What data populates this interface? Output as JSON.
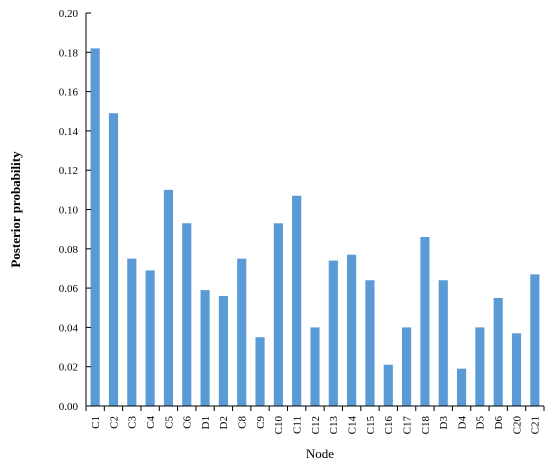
{
  "chart_data": {
    "type": "bar",
    "title": "",
    "xlabel": "Node",
    "ylabel": "Posterior probability",
    "ylim": [
      0,
      0.2
    ],
    "yticks": [
      "0.00",
      "0.02",
      "0.04",
      "0.06",
      "0.08",
      "0.10",
      "0.12",
      "0.14",
      "0.16",
      "0.18",
      "0.20"
    ],
    "bar_color": "#5b9bd5",
    "grid": false,
    "legend": "none",
    "categories": [
      "C1",
      "C2",
      "C3",
      "C4",
      "C5",
      "C6",
      "D1",
      "D2",
      "C8",
      "C9",
      "C10",
      "C11",
      "C12",
      "C13",
      "C14",
      "C15",
      "C16",
      "C17",
      "C18",
      "D3",
      "D4",
      "D5",
      "D6",
      "C20",
      "C21"
    ],
    "values": [
      0.182,
      0.149,
      0.075,
      0.069,
      0.11,
      0.093,
      0.059,
      0.056,
      0.075,
      0.035,
      0.093,
      0.107,
      0.04,
      0.074,
      0.077,
      0.064,
      0.021,
      0.04,
      0.086,
      0.064,
      0.019,
      0.04,
      0.055,
      0.037,
      0.067
    ]
  }
}
